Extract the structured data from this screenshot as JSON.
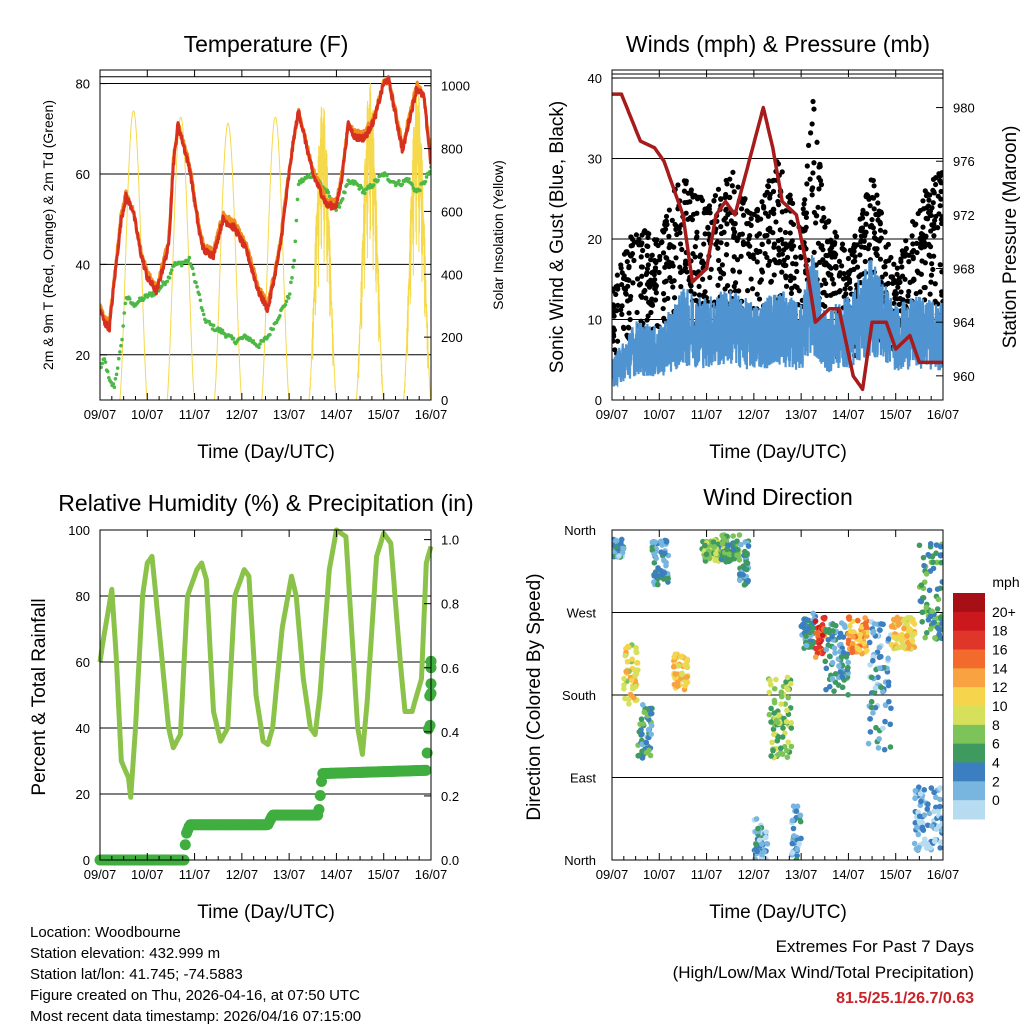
{
  "colors": {
    "red": "#d7301f",
    "orange": "#f08c1e",
    "green": "#4cb845",
    "yellow": "#f5d94a",
    "black": "#000000",
    "blue": "#4f94d0",
    "maroon": "#a61c1c",
    "rh_line": "#8bc34a",
    "rain": "#3fae3f",
    "extremes_text": "#c8252a"
  },
  "date_ticks": [
    "09/07",
    "10/07",
    "11/07",
    "12/07",
    "13/07",
    "14/07",
    "15/07",
    "16/07"
  ],
  "x_axis_label": "Time (Day/UTC)",
  "chart_data": [
    {
      "id": "temperature",
      "type": "line",
      "title": "Temperature (F)",
      "ylabel": "2m & 9m T (Red, Orange) & 2m Td (Green)",
      "y2label": "Solar Insolation (Yellow)",
      "ylim": [
        10,
        83
      ],
      "y2lim": [
        0,
        1050
      ],
      "yticks": [
        "20",
        "40",
        "60",
        "80"
      ],
      "y2ticks": [
        "0",
        "200",
        "400",
        "600",
        "800",
        "1000"
      ],
      "hlines": [
        20,
        40,
        60,
        80,
        81.5
      ],
      "x": [
        0,
        0.1,
        0.2,
        0.3,
        0.45,
        0.55,
        0.7,
        0.85,
        1.0,
        1.2,
        1.45,
        1.55,
        1.65,
        1.9,
        2.1,
        2.2,
        2.4,
        2.6,
        2.85,
        3.1,
        3.35,
        3.55,
        3.8,
        4.0,
        4.1,
        4.2,
        4.5,
        4.8,
        5.0,
        5.1,
        5.25,
        5.4,
        5.6,
        5.8,
        6.0,
        6.1,
        6.25,
        6.4,
        6.5,
        6.7,
        6.85,
        6.95,
        7.0
      ],
      "series": [
        {
          "name": "2m T",
          "color": "red",
          "values": [
            30,
            27,
            26,
            36,
            50,
            55,
            52,
            43,
            37,
            34,
            44,
            62,
            71,
            61,
            47,
            43,
            42,
            50,
            48,
            43,
            34,
            30,
            43,
            60,
            68,
            74,
            60,
            53,
            53,
            58,
            71,
            68,
            68,
            72,
            80,
            81,
            73,
            65,
            70,
            79,
            77,
            67,
            62
          ]
        },
        {
          "name": "9m T",
          "color": "orange",
          "values": [
            31,
            28,
            27,
            37,
            51,
            56,
            52,
            44,
            38,
            35,
            45,
            63,
            71,
            62,
            48,
            44,
            43,
            51,
            49,
            44,
            35,
            31,
            44,
            61,
            68,
            74,
            61,
            54,
            54,
            59,
            71,
            69,
            69,
            73,
            80,
            81,
            74,
            66,
            71,
            80,
            77,
            68,
            63
          ]
        },
        {
          "name": "2m Td",
          "color": "green",
          "values": [
            17,
            19,
            14,
            13,
            22,
            33,
            31,
            32,
            33,
            34,
            37,
            40,
            40,
            41,
            33,
            28,
            26,
            25,
            23,
            24,
            22,
            24,
            29,
            33,
            40,
            58,
            60,
            56,
            52,
            54,
            58,
            58,
            56,
            58,
            60,
            59,
            58,
            58,
            59,
            56,
            58,
            60,
            61
          ]
        },
        {
          "name": "Solar Insolation",
          "color": "yellow",
          "axis": "right",
          "daily_peaks": [
            920,
            900,
            880,
            900,
            950,
            1010,
            1000
          ],
          "peak_hours_utc": 17
        }
      ]
    },
    {
      "id": "winds",
      "type": "scatter",
      "title": "Winds (mph) & Pressure (mb)",
      "ylabel": "Sonic Wind & Gust (Blue, Black)",
      "y2label": "Station Pressure (Maroon)",
      "ylim": [
        0,
        41
      ],
      "y2lim": [
        958.2,
        982.8
      ],
      "yticks": [
        "0",
        "10",
        "20",
        "30",
        "40"
      ],
      "y2ticks": [
        "960",
        "964",
        "968",
        "972",
        "976",
        "980"
      ],
      "hlines": [
        10,
        20,
        30,
        40,
        40.5
      ],
      "gust_envelope": {
        "x": [
          0,
          0.5,
          1.0,
          1.5,
          2.0,
          2.5,
          3.0,
          3.5,
          4.0,
          4.25,
          4.5,
          5.0,
          5.5,
          6.0,
          6.5,
          7.0
        ],
        "values": [
          14,
          22,
          20,
          30,
          24,
          29,
          23,
          30,
          22,
          38,
          24,
          18,
          28,
          16,
          25,
          30
        ]
      },
      "wind_envelope": {
        "x": [
          0,
          0.5,
          1.0,
          1.5,
          2.0,
          2.5,
          3.0,
          3.5,
          4.0,
          4.25,
          4.5,
          5.0,
          5.5,
          6.0,
          6.5,
          7.0
        ],
        "values": [
          5,
          10,
          9,
          14,
          13,
          14,
          12,
          14,
          12,
          19,
          11,
          13,
          18,
          12,
          13,
          12
        ]
      },
      "series": [
        {
          "name": "Station Pressure",
          "color": "maroon",
          "axis": "right",
          "x": [
            0,
            0.2,
            0.6,
            0.9,
            1.1,
            1.5,
            1.7,
            2.0,
            2.2,
            2.4,
            2.6,
            2.9,
            3.2,
            3.4,
            3.6,
            3.9,
            4.1,
            4.3,
            4.6,
            4.8,
            5.1,
            5.3,
            5.5,
            5.8,
            6.0,
            6.3,
            6.5,
            6.8,
            7.0
          ],
          "values": [
            981,
            981,
            977.5,
            977,
            976,
            972,
            967,
            968,
            972,
            973,
            972,
            976,
            980,
            977,
            973,
            972,
            968.5,
            964,
            965,
            965,
            960,
            959,
            964,
            964,
            962,
            963,
            961,
            961,
            961
          ]
        }
      ]
    },
    {
      "id": "humidity",
      "type": "line",
      "title": "Relative Humidity (%) & Precipitation (in)",
      "ylabel": "Percent & Total Rainfall",
      "ylim": [
        0,
        100
      ],
      "y2lim": [
        0,
        1.03
      ],
      "yticks": [
        "0",
        "20",
        "40",
        "60",
        "80",
        "100"
      ],
      "y2ticks": [
        "0.0",
        "0.2",
        "0.4",
        "0.6",
        "0.8",
        "1.0"
      ],
      "hlines": [
        20,
        40,
        60,
        80
      ],
      "series": [
        {
          "name": "Relative Humidity",
          "color": "rh_line",
          "x": [
            0,
            0.05,
            0.25,
            0.35,
            0.45,
            0.6,
            0.65,
            0.75,
            0.9,
            1.0,
            1.1,
            1.25,
            1.45,
            1.55,
            1.7,
            1.85,
            2.05,
            2.15,
            2.25,
            2.4,
            2.55,
            2.7,
            2.85,
            3.05,
            3.15,
            3.3,
            3.45,
            3.55,
            3.65,
            3.85,
            4.05,
            4.15,
            4.3,
            4.45,
            4.55,
            4.65,
            4.85,
            5.0,
            5.1,
            5.2,
            5.45,
            5.55,
            5.65,
            5.85,
            6.0,
            6.15,
            6.35,
            6.45,
            6.6,
            6.8,
            6.9,
            7.0
          ],
          "values": [
            60,
            65,
            82,
            60,
            30,
            25,
            19,
            40,
            80,
            90,
            92,
            70,
            40,
            34,
            38,
            80,
            88,
            90,
            85,
            45,
            36,
            40,
            80,
            88,
            86,
            50,
            36,
            35,
            40,
            70,
            86,
            80,
            55,
            40,
            38,
            50,
            88,
            100,
            99,
            98,
            40,
            32,
            48,
            92,
            99,
            96,
            60,
            45,
            45,
            55,
            90,
            95
          ]
        },
        {
          "name": "Total Precipitation",
          "color": "rain",
          "axis": "right",
          "x": [
            0,
            1.78,
            1.82,
            1.9,
            3.55,
            3.65,
            3.75,
            4.62,
            4.7,
            4.75,
            6.9,
            6.95,
            7.0
          ],
          "values": [
            0,
            0,
            0.08,
            0.11,
            0.11,
            0.14,
            0.14,
            0.14,
            0.27,
            0.27,
            0.28,
            0.42,
            0.62
          ]
        }
      ]
    },
    {
      "id": "direction",
      "type": "scatter",
      "title": "Wind Direction",
      "ylabel": "Direction (Colored By Speed)",
      "yticks": [
        "North",
        "East",
        "South",
        "West",
        "North"
      ],
      "hlines": [
        90,
        180,
        270
      ],
      "colorbar_title": "mph",
      "colorbar_labels": [
        "20+",
        "18",
        "16",
        "14",
        "12",
        "10",
        "8",
        "6",
        "4",
        "2",
        "0"
      ],
      "colorbar_colors": [
        "#a50f15",
        "#cb181d",
        "#e0362a",
        "#f26a2c",
        "#f8a241",
        "#f6d44c",
        "#d7e05b",
        "#7cc35a",
        "#3e9a5f",
        "#3b7fc0",
        "#78b6e0",
        "#b7dcf2"
      ],
      "clusters": [
        {
          "x": [
            0.0,
            0.25
          ],
          "dir": [
            330,
            350
          ],
          "speed": 3
        },
        {
          "x": [
            0.25,
            0.55
          ],
          "dir": [
            170,
            235
          ],
          "speed": 11
        },
        {
          "x": [
            0.55,
            0.85
          ],
          "dir": [
            110,
            170
          ],
          "speed": 5
        },
        {
          "x": [
            0.85,
            1.2
          ],
          "dir": [
            300,
            350
          ],
          "speed": 4
        },
        {
          "x": [
            1.3,
            1.6
          ],
          "dir": [
            185,
            225
          ],
          "speed": 12
        },
        {
          "x": [
            1.9,
            2.3
          ],
          "dir": [
            325,
            350
          ],
          "speed": 8
        },
        {
          "x": [
            2.3,
            2.7
          ],
          "dir": [
            325,
            355
          ],
          "speed": 7
        },
        {
          "x": [
            2.7,
            2.9
          ],
          "dir": [
            300,
            350
          ],
          "speed": 4
        },
        {
          "x": [
            3.0,
            3.3
          ],
          "dir": [
            0,
            45
          ],
          "speed": 3
        },
        {
          "x": [
            3.3,
            3.8
          ],
          "dir": [
            110,
            200
          ],
          "speed": 8
        },
        {
          "x": [
            3.8,
            4.0
          ],
          "dir": [
            0,
            60
          ],
          "speed": 3
        },
        {
          "x": [
            4.0,
            4.3
          ],
          "dir": [
            230,
            270
          ],
          "speed": 4
        },
        {
          "x": [
            4.3,
            4.5
          ],
          "dir": [
            220,
            265
          ],
          "speed": 17
        },
        {
          "x": [
            4.5,
            5.0
          ],
          "dir": [
            180,
            260
          ],
          "speed": 4
        },
        {
          "x": [
            5.0,
            5.4
          ],
          "dir": [
            225,
            265
          ],
          "speed": 14
        },
        {
          "x": [
            5.4,
            5.9
          ],
          "dir": [
            120,
            260
          ],
          "speed": 3
        },
        {
          "x": [
            5.9,
            6.4
          ],
          "dir": [
            230,
            265
          ],
          "speed": 12
        },
        {
          "x": [
            6.4,
            7.0
          ],
          "dir": [
            10,
            80
          ],
          "speed": 2
        },
        {
          "x": [
            6.5,
            7.0
          ],
          "dir": [
            240,
            345
          ],
          "speed": 6
        }
      ]
    }
  ],
  "station": {
    "location": "Location: Woodbourne",
    "elevation": "Station elevation: 432.999 m",
    "latlon": "Station lat/lon: 41.745; -74.5883",
    "created": "Figure created on Thu, 2026-04-16, at 07:50 UTC",
    "recent": "Most recent data timestamp: 2026/04/16 07:15:00"
  },
  "extremes": {
    "heading": "Extremes For Past 7 Days",
    "subheading": "(High/Low/Max Wind/Total Precipitation)",
    "values": "81.5/25.1/26.7/0.63"
  }
}
